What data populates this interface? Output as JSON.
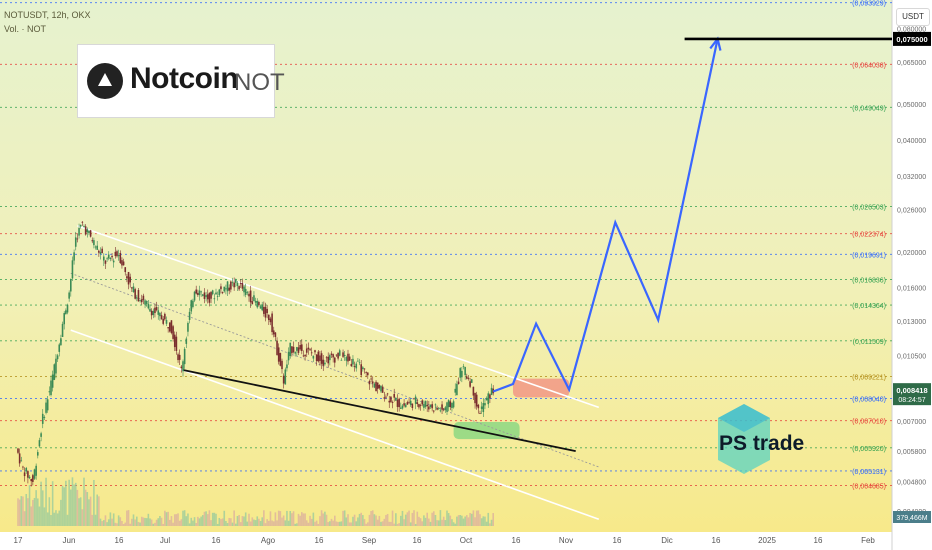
{
  "header": {
    "symbol_line": "NOTUSDT, 12h, OKX",
    "volume_line": "Vol. · NOT"
  },
  "currency_button": "USDT",
  "logo": {
    "name": "Notcoin",
    "ticker": "NOT",
    "icon": "notcoin-triangle-icon"
  },
  "watermark": {
    "text": "PS trade",
    "icon": "ps-trade-hexagon-icon"
  },
  "colors": {
    "background_top": "#e6f2cf",
    "background_bottom": "#f7e98a",
    "bull_candle": "#3b8a55",
    "bear_candle": "#7a2e2e",
    "projection_line": "#3a66ff",
    "channel_line": "#ffffff",
    "support_line": "#111111",
    "red_level": "#e53935",
    "green_level": "#2e9e4d",
    "blue_level": "#2962ff",
    "gold_level": "#b08a14",
    "resistance_zone": "#f28b82",
    "support_zone": "#7fd67f"
  },
  "chart_data": {
    "type": "line",
    "title": "",
    "pair": "NOTUSDT",
    "exchange": "OKX",
    "interval": "12h",
    "y_scale": "log",
    "ylim": [
      0.0036,
      0.11
    ],
    "y_axis_ticks": [
      "0,080000",
      "0,065000",
      "0,050000",
      "0,040000",
      "0,032000",
      "0,026000",
      "0,020000",
      "0,016000",
      "0,013000",
      "0,010500",
      "0,008400",
      "0,007000",
      "0,005800",
      "0,004800",
      "0,004000"
    ],
    "x_axis_ticks": [
      "17",
      "Jun",
      "16",
      "Jul",
      "16",
      "Ago",
      "16",
      "Sep",
      "16",
      "Oct",
      "16",
      "Nov",
      "16",
      "Dic",
      "16",
      "2025",
      "16",
      "Feb"
    ],
    "current_price": "0,008418",
    "countdown": "08:24:57",
    "volume_last": "379,466M",
    "target_label": "0,075000",
    "levels": [
      {
        "label": "(0,093929)",
        "value": 0.093929,
        "kind": "blue"
      },
      {
        "label": "(0,064038)",
        "value": 0.064038,
        "kind": "red"
      },
      {
        "label": "(0,049049)",
        "value": 0.049049,
        "kind": "green"
      },
      {
        "label": "(0,026503)",
        "value": 0.026503,
        "kind": "green"
      },
      {
        "label": "(0,022374)",
        "value": 0.022374,
        "kind": "red"
      },
      {
        "label": "(0,019691)",
        "value": 0.019691,
        "kind": "blue"
      },
      {
        "label": "(0,016836)",
        "value": 0.016836,
        "kind": "green"
      },
      {
        "label": "(0,014364)",
        "value": 0.014364,
        "kind": "green"
      },
      {
        "label": "(0,011509)",
        "value": 0.011509,
        "kind": "green"
      },
      {
        "label": "(0,009221)",
        "value": 0.009221,
        "kind": "gold"
      },
      {
        "label": "(0,008040)",
        "value": 0.00804,
        "kind": "blue"
      },
      {
        "label": "(0,007010)",
        "value": 0.00701,
        "kind": "red"
      },
      {
        "label": "(0,005920)",
        "value": 0.00592,
        "kind": "green"
      },
      {
        "label": "(0,005131)",
        "value": 0.005131,
        "kind": "blue"
      },
      {
        "label": "(0,004685)",
        "value": 0.004685,
        "kind": "red"
      }
    ],
    "price_path": [
      {
        "date": "2024-05-16",
        "price": 0.0059
      },
      {
        "date": "2024-05-18",
        "price": 0.0052
      },
      {
        "date": "2024-05-21",
        "price": 0.0048
      },
      {
        "date": "2024-05-24",
        "price": 0.0071
      },
      {
        "date": "2024-05-27",
        "price": 0.0092
      },
      {
        "date": "2024-05-30",
        "price": 0.0128
      },
      {
        "date": "2024-06-01",
        "price": 0.0156
      },
      {
        "date": "2024-06-03",
        "price": 0.0218
      },
      {
        "date": "2024-06-05",
        "price": 0.0238
      },
      {
        "date": "2024-06-08",
        "price": 0.0215
      },
      {
        "date": "2024-06-12",
        "price": 0.0188
      },
      {
        "date": "2024-06-16",
        "price": 0.0198
      },
      {
        "date": "2024-06-20",
        "price": 0.0158
      },
      {
        "date": "2024-06-25",
        "price": 0.0142
      },
      {
        "date": "2024-06-29",
        "price": 0.0133
      },
      {
        "date": "2024-07-02",
        "price": 0.0125
      },
      {
        "date": "2024-07-05",
        "price": 0.0096
      },
      {
        "date": "2024-07-07",
        "price": 0.0128
      },
      {
        "date": "2024-07-09",
        "price": 0.016
      },
      {
        "date": "2024-07-13",
        "price": 0.015
      },
      {
        "date": "2024-07-18",
        "price": 0.016
      },
      {
        "date": "2024-07-22",
        "price": 0.0164
      },
      {
        "date": "2024-07-27",
        "price": 0.0148
      },
      {
        "date": "2024-08-01",
        "price": 0.0132
      },
      {
        "date": "2024-08-05",
        "price": 0.009
      },
      {
        "date": "2024-08-07",
        "price": 0.011
      },
      {
        "date": "2024-08-12",
        "price": 0.0108
      },
      {
        "date": "2024-08-17",
        "price": 0.0102
      },
      {
        "date": "2024-08-22",
        "price": 0.0105
      },
      {
        "date": "2024-08-27",
        "price": 0.01
      },
      {
        "date": "2024-09-01",
        "price": 0.0088
      },
      {
        "date": "2024-09-06",
        "price": 0.0081
      },
      {
        "date": "2024-09-10",
        "price": 0.0077
      },
      {
        "date": "2024-09-14",
        "price": 0.0079
      },
      {
        "date": "2024-09-18",
        "price": 0.0077
      },
      {
        "date": "2024-09-22",
        "price": 0.0075
      },
      {
        "date": "2024-09-25",
        "price": 0.0078
      },
      {
        "date": "2024-09-28",
        "price": 0.0098
      },
      {
        "date": "2024-10-01",
        "price": 0.0088
      },
      {
        "date": "2024-10-03",
        "price": 0.0074
      },
      {
        "date": "2024-10-05",
        "price": 0.0078
      },
      {
        "date": "2024-10-07",
        "price": 0.0084
      }
    ],
    "projection": [
      {
        "date": "2024-10-13",
        "price": 0.0088
      },
      {
        "date": "2024-10-20",
        "price": 0.0128
      },
      {
        "date": "2024-10-30",
        "price": 0.0085
      },
      {
        "date": "2024-11-13",
        "price": 0.024
      },
      {
        "date": "2024-11-26",
        "price": 0.0131
      },
      {
        "date": "2024-12-14",
        "price": 0.075
      }
    ],
    "channel": {
      "upper": [
        {
          "date": "2024-06-03",
          "price": 0.0235
        },
        {
          "date": "2024-11-01",
          "price": 0.008
        }
      ],
      "middle": [
        {
          "date": "2024-06-01",
          "price": 0.0175
        },
        {
          "date": "2024-11-02",
          "price": 0.0055
        }
      ],
      "lower": [
        {
          "date": "2024-06-01",
          "price": 0.0123
        },
        {
          "date": "2024-11-01",
          "price": 0.004
        }
      ]
    },
    "support_line": [
      {
        "date": "2024-07-05",
        "price": 0.0096
      },
      {
        "date": "2024-11-01",
        "price": 0.0058
      }
    ],
    "zones": [
      {
        "name": "resistance",
        "from_date": "2024-10-13",
        "to_date": "2024-10-30",
        "low": 0.0081,
        "high": 0.0091
      },
      {
        "name": "support",
        "from_date": "2024-09-25",
        "to_date": "2024-10-15",
        "low": 0.00625,
        "high": 0.00695
      }
    ],
    "target_line": {
      "from_date": "2024-12-04",
      "price": 0.075
    }
  }
}
